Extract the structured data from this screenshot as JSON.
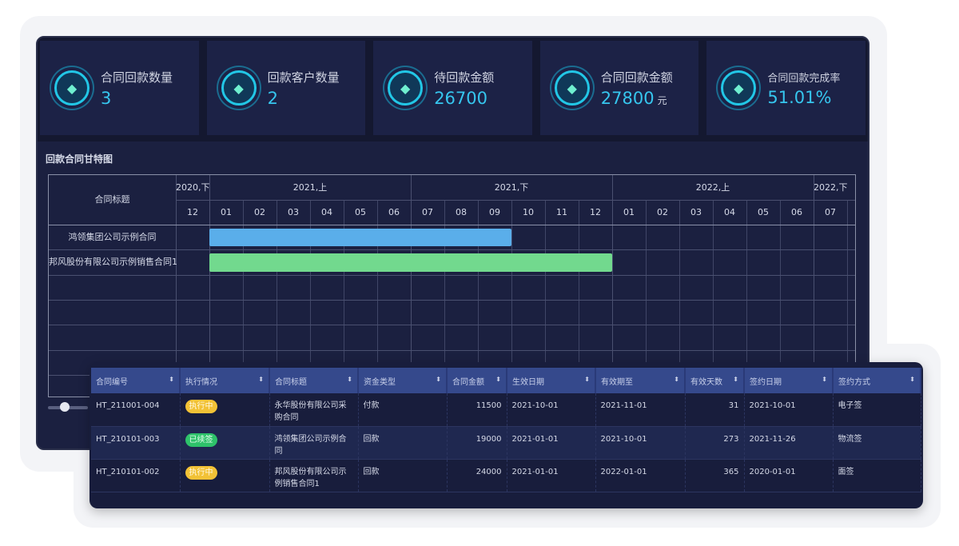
{
  "stats": [
    {
      "label": "合同回款数量",
      "value": "3",
      "unit": ""
    },
    {
      "label": "回款客户数量",
      "value": "2",
      "unit": ""
    },
    {
      "label": "待回款金额",
      "value": "26700",
      "unit": ""
    },
    {
      "label": "合同回款金额",
      "value": "27800",
      "unit": "元"
    },
    {
      "label": "合同回款完成率",
      "value": "51.01%",
      "unit": ""
    }
  ],
  "gantt": {
    "title": "回款合同甘特图",
    "row_header": "合同标题",
    "periods": [
      {
        "label": "2020,下",
        "months": 1
      },
      {
        "label": "2021,上",
        "months": 6
      },
      {
        "label": "2021,下",
        "months": 6
      },
      {
        "label": "2022,上",
        "months": 6
      },
      {
        "label": "2022,下",
        "months": 1
      }
    ],
    "months": [
      "12",
      "01",
      "02",
      "03",
      "04",
      "05",
      "06",
      "07",
      "08",
      "09",
      "10",
      "11",
      "12",
      "01",
      "02",
      "03",
      "04",
      "05",
      "06",
      "07"
    ],
    "tasks": [
      {
        "name": "鸿领集团公司示例合同",
        "start": "2021-01-01",
        "end": "2021-10-01",
        "color": "#5aaeea"
      },
      {
        "name": "邦风股份有限公司示例销售合同1",
        "start": "2021-01-01",
        "end": "2022-01-01",
        "color": "#72d98e"
      }
    ],
    "colors": {
      "grid": "#4a5070"
    }
  },
  "table": {
    "columns": [
      "合同编号",
      "执行情况",
      "合同标题",
      "资金类型",
      "合同金额",
      "生效日期",
      "有效期至",
      "有效天数",
      "签约日期",
      "签约方式"
    ],
    "rows": [
      {
        "id": "HT_211001-004",
        "status": "执行中",
        "status_color": "#f2c236",
        "title": "永华股份有限公司采购合同",
        "fund": "付款",
        "amount": "11500",
        "start": "2021-10-01",
        "end": "2021-11-01",
        "days": "31",
        "sign": "2021-10-01",
        "method": "电子签"
      },
      {
        "id": "HT_210101-003",
        "status": "已续签",
        "status_color": "#2ec26a",
        "title": "鸿领集团公司示例合同",
        "fund": "回款",
        "amount": "19000",
        "start": "2021-01-01",
        "end": "2021-10-01",
        "days": "273",
        "sign": "2021-11-26",
        "method": "物流签"
      },
      {
        "id": "HT_210101-002",
        "status": "执行中",
        "status_color": "#f2c236",
        "title": "邦风股份有限公司示例销售合同1",
        "fund": "回款",
        "amount": "24000",
        "start": "2021-01-01",
        "end": "2022-01-01",
        "days": "365",
        "sign": "2020-01-01",
        "method": "面签"
      }
    ]
  },
  "icons": {
    "stat": "diamond-icon",
    "sort": "sort-icon"
  }
}
